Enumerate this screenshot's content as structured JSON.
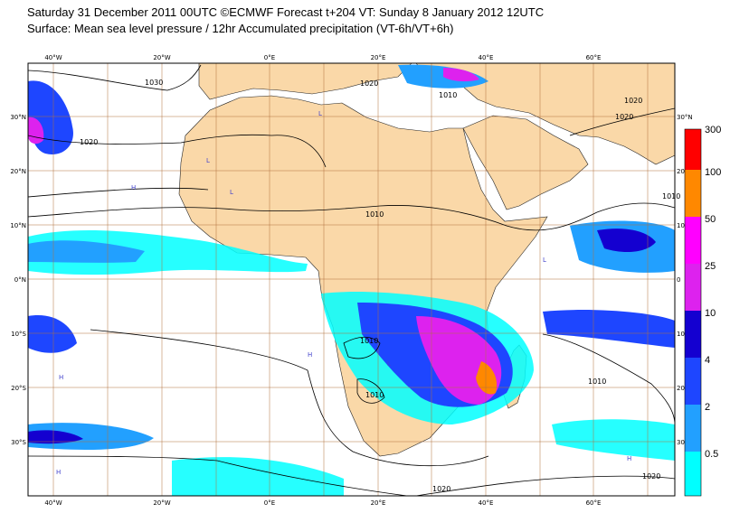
{
  "title": {
    "line1": "Saturday 31 December 2011 00UTC ©ECMWF Forecast t+204 VT: Sunday 8 January 2012 12UTC",
    "line2": "Surface: Mean sea level pressure / 12hr Accumulated precipitation (VT-6h/VT+6h)"
  },
  "map": {
    "lon_ticks": [
      "40°W",
      "20°W",
      "0°E",
      "20°E",
      "40°E",
      "60°E"
    ],
    "lat_ticks_left": [
      "30°N",
      "20°N",
      "10°N",
      "0°N",
      "10°S",
      "20°S",
      "30°S"
    ],
    "lat_ticks_right": [
      "30°N",
      "20",
      "10",
      "0",
      "10",
      "20",
      "30"
    ],
    "isobar_labels": [
      "1030",
      "1020",
      "1020",
      "1010",
      "1010",
      "1020",
      "1010",
      "1010",
      "1010",
      "1010",
      "1020",
      "1020",
      "1020"
    ],
    "pressure_centres": [
      "H",
      "L"
    ],
    "colors": {
      "land": "#fad8a8",
      "ocean": "#ffffff",
      "grid": "#b0703c",
      "isobar": "#000000"
    }
  },
  "legend": {
    "levels": [
      "300",
      "100",
      "50",
      "25",
      "10",
      "4",
      "2",
      "0.5"
    ],
    "colors": [
      "#ff0000",
      "#ff8800",
      "#ff00ff",
      "#dd22ee",
      "#1400d0",
      "#1e46ff",
      "#22a0ff",
      "#00ffff"
    ]
  }
}
